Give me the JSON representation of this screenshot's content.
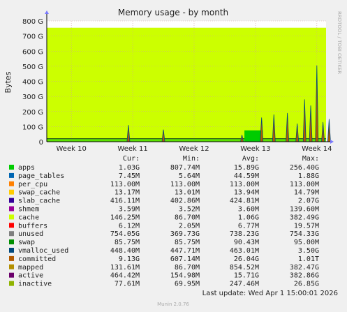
{
  "chart_data": {
    "type": "area",
    "title": "Memory usage - by month",
    "ylabel": "Bytes",
    "side_label": "RRDTOOL / TOBI OETIKER",
    "y_ticks": [
      "0",
      "100 G",
      "200 G",
      "300 G",
      "400 G",
      "500 G",
      "600 G",
      "700 G",
      "800 G"
    ],
    "ylim_gb": [
      0,
      800
    ],
    "x_ticks": [
      "Week 10",
      "Week 11",
      "Week 12",
      "Week 13",
      "Week 14"
    ],
    "grid": true,
    "background_level_gb": 755,
    "columns": [
      "Cur:",
      "Min:",
      "Avg:",
      "Max:"
    ],
    "legend": [
      {
        "name": "apps",
        "color": "#00cc00",
        "cur": "1.03G",
        "min": "807.74M",
        "avg": "15.89G",
        "max": "256.40G"
      },
      {
        "name": "page_tables",
        "color": "#0066b3",
        "cur": "7.45M",
        "min": "5.64M",
        "avg": "44.59M",
        "max": "1.88G"
      },
      {
        "name": "per_cpu",
        "color": "#ff8000",
        "cur": "113.00M",
        "min": "113.00M",
        "avg": "113.00M",
        "max": "113.00M"
      },
      {
        "name": "swap_cache",
        "color": "#ffcc00",
        "cur": "13.17M",
        "min": "13.01M",
        "avg": "13.94M",
        "max": "14.79M"
      },
      {
        "name": "slab_cache",
        "color": "#330099",
        "cur": "416.11M",
        "min": "402.86M",
        "avg": "424.81M",
        "max": "2.07G"
      },
      {
        "name": "shmem",
        "color": "#990099",
        "cur": "3.59M",
        "min": "3.52M",
        "avg": "3.60M",
        "max": "139.60M"
      },
      {
        "name": "cache",
        "color": "#ccff00",
        "cur": "146.25M",
        "min": "86.70M",
        "avg": "1.06G",
        "max": "382.49G"
      },
      {
        "name": "buffers",
        "color": "#ff0000",
        "cur": "6.12M",
        "min": "2.05M",
        "avg": "6.77M",
        "max": "19.57M"
      },
      {
        "name": "unused",
        "color": "#808080",
        "cur": "754.05G",
        "min": "369.73G",
        "avg": "738.23G",
        "max": "754.33G"
      },
      {
        "name": "swap",
        "color": "#008f00",
        "cur": "85.75M",
        "min": "85.75M",
        "avg": "90.43M",
        "max": "95.00M"
      },
      {
        "name": "vmalloc_used",
        "color": "#00487d",
        "cur": "448.40M",
        "min": "447.71M",
        "avg": "463.01M",
        "max": "3.50G"
      },
      {
        "name": "committed",
        "color": "#b35a00",
        "cur": "9.13G",
        "min": "607.14M",
        "avg": "26.04G",
        "max": "1.01T"
      },
      {
        "name": "mapped",
        "color": "#b38f00",
        "cur": "131.61M",
        "min": "86.70M",
        "avg": "854.52M",
        "max": "382.47G"
      },
      {
        "name": "active",
        "color": "#6b006b",
        "cur": "464.42M",
        "min": "154.98M",
        "avg": "15.71G",
        "max": "382.86G"
      },
      {
        "name": "inactive",
        "color": "#8fb300",
        "cur": "77.61M",
        "min": "69.95M",
        "avg": "247.46M",
        "max": "26.85G"
      }
    ],
    "spikes_gb": [
      {
        "week": 10.93,
        "value": 110
      },
      {
        "week": 11.5,
        "value": 80
      },
      {
        "week": 12.78,
        "value": 45
      },
      {
        "week": 13.1,
        "value": 160
      },
      {
        "week": 13.3,
        "value": 180
      },
      {
        "week": 13.52,
        "value": 190
      },
      {
        "week": 13.68,
        "value": 120
      },
      {
        "week": 13.8,
        "value": 280
      },
      {
        "week": 13.9,
        "value": 240
      },
      {
        "week": 14.0,
        "value": 505
      },
      {
        "week": 14.1,
        "value": 130
      },
      {
        "week": 14.2,
        "value": 150
      }
    ],
    "footer_update": "Last update: Wed Apr  1 15:00:01 2026",
    "footer_version": "Munin 2.0.76"
  }
}
